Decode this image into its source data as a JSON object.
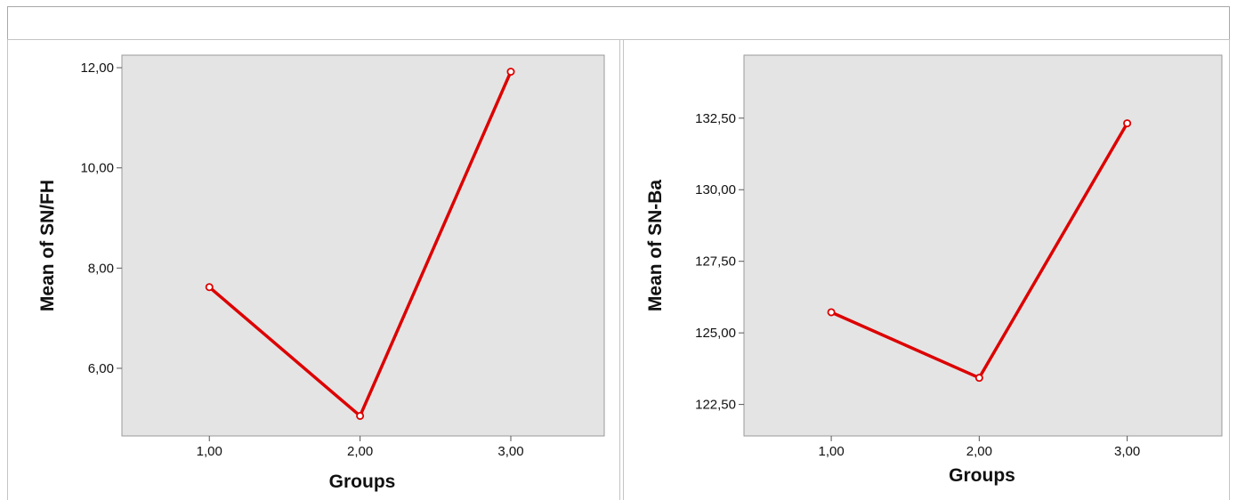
{
  "chart_data": [
    {
      "type": "line",
      "title": "",
      "xlabel": "Groups",
      "ylabel": "Mean of SN/FH",
      "x": [
        1,
        2,
        3
      ],
      "x_tick_labels": [
        "1,00",
        "2,00",
        "3,00"
      ],
      "xlim": [
        0.42,
        3.62
      ],
      "y_ticks": [
        6,
        8,
        10,
        12
      ],
      "y_tick_labels": [
        "6,00",
        "8,00",
        "10,00",
        "12,00"
      ],
      "ylim": [
        4.65,
        12.25
      ],
      "grid": false,
      "series": [
        {
          "name": "",
          "values": [
            7.62,
            5.05,
            11.92
          ],
          "color": "#dd0000"
        }
      ]
    },
    {
      "type": "line",
      "title": "",
      "xlabel": "Groups",
      "ylabel": "Mean of SN-Ba",
      "x": [
        1,
        2,
        3
      ],
      "x_tick_labels": [
        "1,00",
        "2,00",
        "3,00"
      ],
      "xlim": [
        0.41,
        3.64
      ],
      "y_ticks": [
        122.5,
        125,
        127.5,
        130,
        132.5
      ],
      "y_tick_labels": [
        "122,50",
        "125,00",
        "127,50",
        "130,00",
        "132,50"
      ],
      "ylim": [
        121.4,
        134.7
      ],
      "grid": false,
      "series": [
        {
          "name": "",
          "values": [
            125.72,
            123.43,
            132.32
          ],
          "color": "#dd0000"
        }
      ]
    }
  ],
  "colors": {
    "plot_background": "#e4e4e4",
    "line": "#dd0000",
    "axis": "#9a9a9a",
    "panel_border": "#b8b8b8"
  }
}
